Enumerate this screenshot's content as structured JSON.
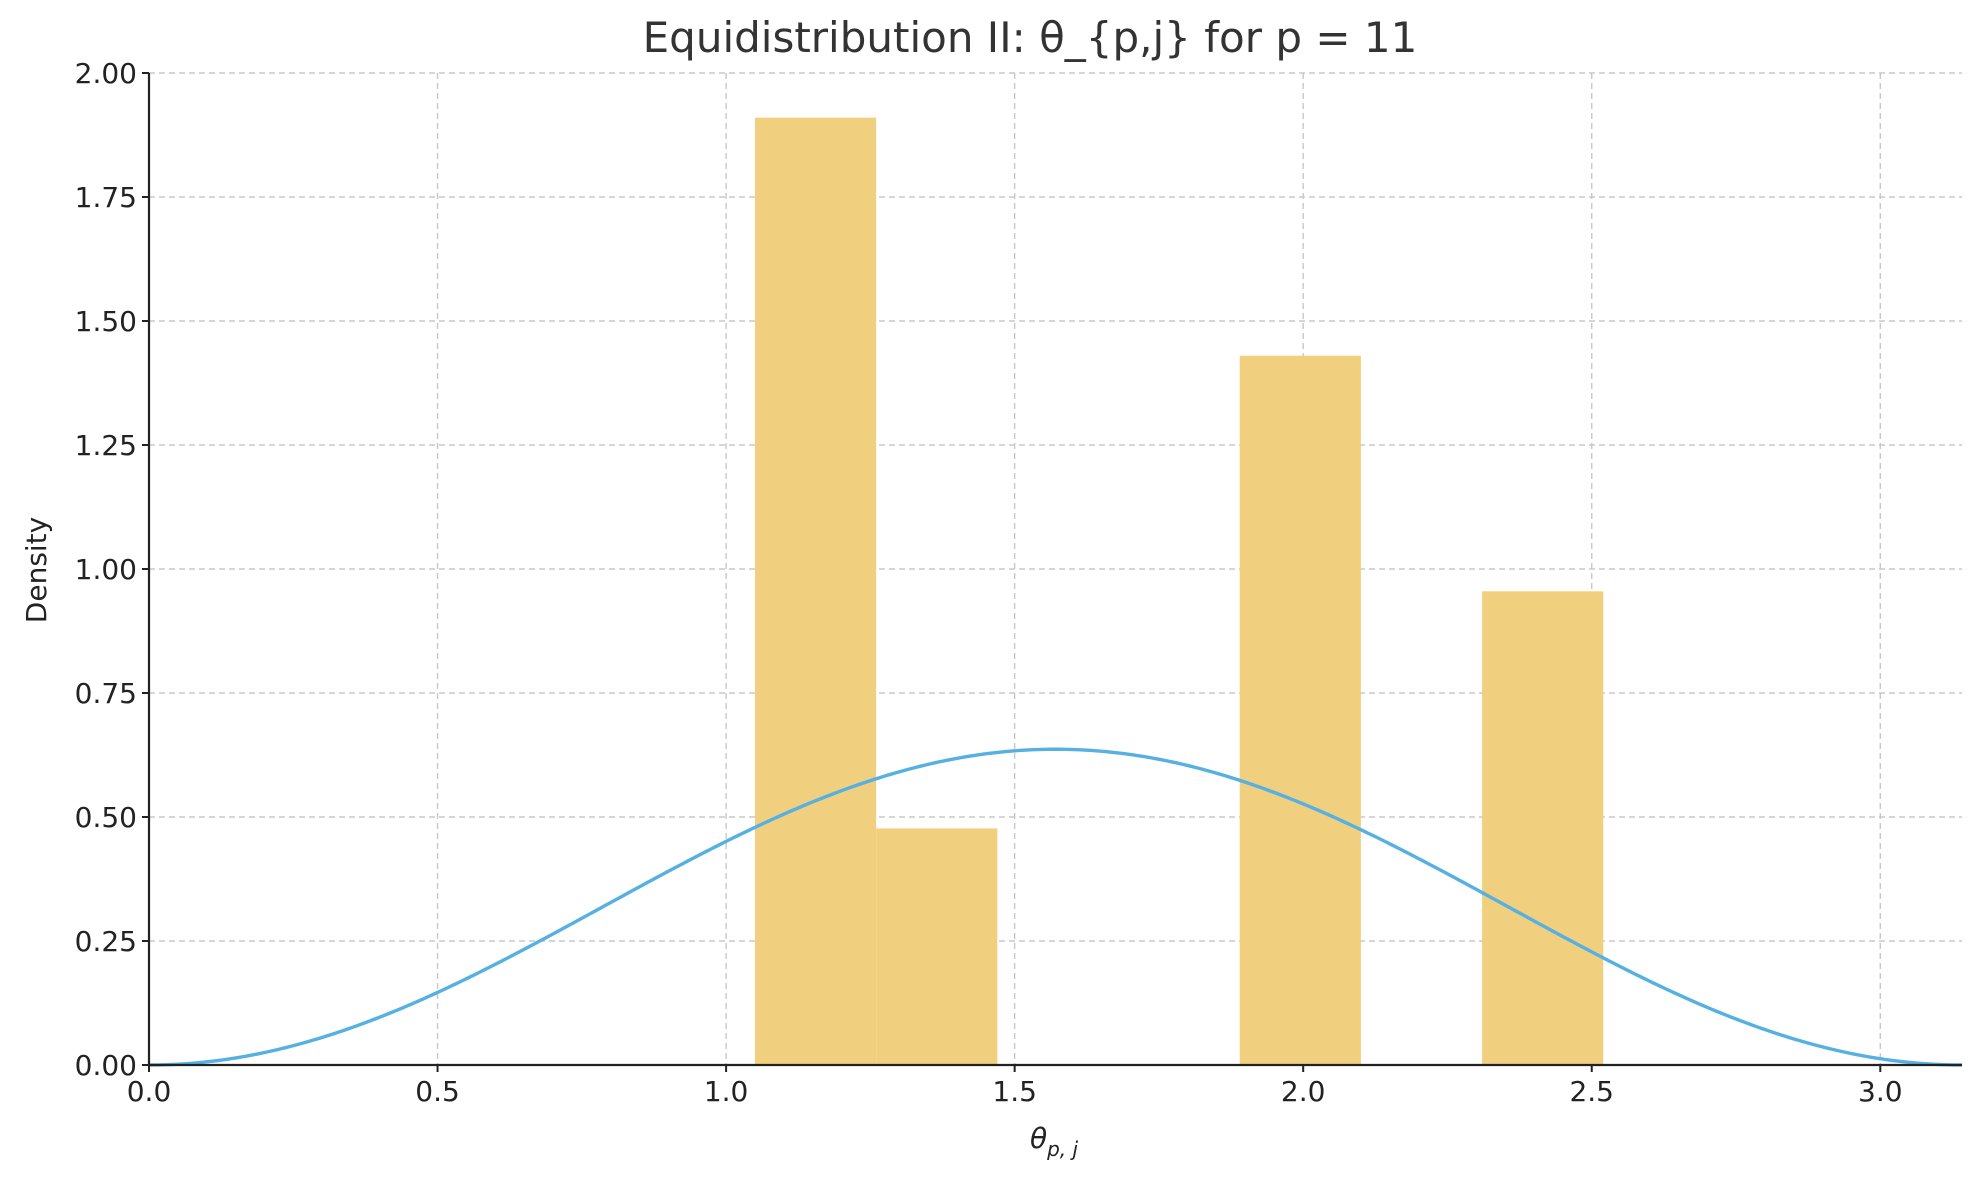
{
  "chart_data": {
    "type": "bar",
    "title": "Equidistribution II: θ_{p,j} for p = 11",
    "xlabel_base": "θ",
    "xlabel_sub": "p, j",
    "ylabel": "Density",
    "xlim": [
      0.0,
      3.14159
    ],
    "ylim": [
      0.0,
      2.0
    ],
    "x_ticks": [
      0.0,
      0.5,
      1.0,
      1.5,
      2.0,
      2.5,
      3.0
    ],
    "x_tick_labels": [
      "0.0",
      "0.5",
      "1.0",
      "1.5",
      "2.0",
      "2.5",
      "3.0"
    ],
    "y_ticks": [
      0.0,
      0.25,
      0.5,
      0.75,
      1.0,
      1.25,
      1.5,
      1.75,
      2.0
    ],
    "y_tick_labels": [
      "0.00",
      "0.25",
      "0.50",
      "0.75",
      "1.00",
      "1.25",
      "1.50",
      "1.75",
      "2.00"
    ],
    "grid": true,
    "histogram": {
      "bin_edges": [
        1.05,
        1.26,
        1.47,
        1.68,
        1.89,
        2.1,
        2.31,
        2.52
      ],
      "values": [
        1.91,
        0.477,
        0,
        0,
        1.43,
        0,
        0.955
      ],
      "color": "#f0cf7e"
    },
    "curve": {
      "function": "(2/pi)*sin(x)^2",
      "domain": [
        0.0,
        3.14159
      ],
      "color": "#56b0e2"
    }
  }
}
